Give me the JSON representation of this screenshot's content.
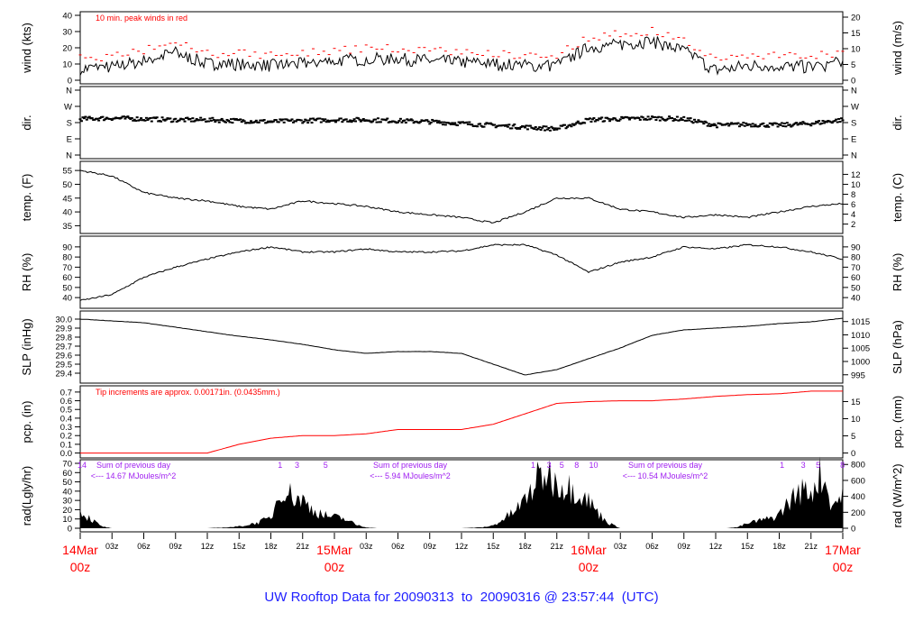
{
  "footer": "UW Rooftop Data for 20090313  to  20090316 @ 23:57:44  (UTC)",
  "chart_data": [
    {
      "type": "line",
      "name": "wind",
      "ylabel": "wind (kts)",
      "ylabel_right": "wind (m/s)",
      "ylim": [
        0,
        40
      ],
      "ticks": [
        "0",
        "10",
        "20",
        "30",
        "40"
      ],
      "ticks_right": [
        "0",
        "5",
        "10",
        "15",
        "20"
      ],
      "annotation": "10 min. peak winds in red",
      "annotation_color": "#ff0000",
      "x_hours": [
        0,
        3,
        6,
        9,
        12,
        15,
        18,
        21,
        24,
        27,
        30,
        33,
        36,
        39,
        42,
        45,
        48,
        51,
        54,
        57,
        60,
        63,
        66,
        69,
        72
      ],
      "values": [
        7,
        8,
        12,
        17,
        10,
        10,
        9,
        10,
        12,
        13,
        13,
        12,
        11,
        10,
        9,
        9,
        20,
        22,
        24,
        18,
        6,
        9,
        9,
        8,
        11
      ]
    },
    {
      "type": "scatter",
      "name": "dir",
      "ylabel": "dir.",
      "ylabel_right": "dir.",
      "ylim": [
        0,
        360
      ],
      "ticks": [
        "N",
        "E",
        "S",
        "W",
        "N"
      ],
      "ticks_right": [
        "N",
        "E",
        "S",
        "W",
        "N"
      ],
      "x_hours": [
        0,
        3,
        6,
        9,
        12,
        15,
        18,
        21,
        24,
        27,
        30,
        33,
        36,
        39,
        42,
        45,
        48,
        51,
        54,
        57,
        60,
        63,
        66,
        69,
        72
      ],
      "values": [
        200,
        205,
        200,
        195,
        195,
        190,
        185,
        190,
        195,
        195,
        190,
        185,
        175,
        165,
        155,
        145,
        195,
        200,
        205,
        200,
        165,
        170,
        165,
        175,
        195
      ]
    },
    {
      "type": "line",
      "name": "temp",
      "ylabel": "temp. (F)",
      "ylabel_right": "temp. (C)",
      "ylim": [
        33.5,
        57
      ],
      "ticks": [
        "35",
        "40",
        "45",
        "50",
        "55"
      ],
      "ticks_right": [
        "2",
        "4",
        "6",
        "8",
        "10",
        "12"
      ],
      "x_hours": [
        0,
        3,
        6,
        9,
        12,
        15,
        18,
        21,
        24,
        27,
        30,
        33,
        36,
        39,
        42,
        45,
        48,
        51,
        54,
        57,
        60,
        63,
        66,
        69,
        72
      ],
      "values": [
        55,
        53,
        47,
        45,
        44,
        42,
        41,
        44,
        43,
        42,
        40,
        39,
        38,
        36,
        40,
        45,
        45,
        41,
        40,
        38,
        39,
        38,
        40,
        42,
        43
      ]
    },
    {
      "type": "line",
      "name": "rh",
      "ylabel": "RH (%)",
      "ylabel_right": "RH (%)",
      "ylim": [
        33,
        97
      ],
      "ticks": [
        "40",
        "50",
        "60",
        "70",
        "80",
        "90"
      ],
      "ticks_right": [
        "40",
        "50",
        "60",
        "70",
        "80",
        "90"
      ],
      "x_hours": [
        0,
        3,
        6,
        9,
        12,
        15,
        18,
        21,
        24,
        27,
        30,
        33,
        36,
        39,
        42,
        45,
        48,
        51,
        54,
        57,
        60,
        63,
        66,
        69,
        72
      ],
      "values": [
        37,
        43,
        60,
        70,
        78,
        85,
        90,
        85,
        85,
        88,
        85,
        85,
        86,
        92,
        92,
        82,
        65,
        75,
        80,
        90,
        88,
        92,
        90,
        85,
        78
      ]
    },
    {
      "type": "line",
      "name": "slp",
      "ylabel": "SLP (inHg)",
      "ylabel_right": "SLP (hPa)",
      "ylim": [
        29.33,
        30.05
      ],
      "ticks": [
        "29.4",
        "29.5",
        "29.6",
        "29.7",
        "29.8",
        "29.9",
        "30.0"
      ],
      "ticks_right": [
        "995",
        "1000",
        "1005",
        "1010",
        "1015"
      ],
      "x_hours": [
        0,
        3,
        6,
        9,
        12,
        15,
        18,
        21,
        24,
        27,
        30,
        33,
        36,
        39,
        42,
        45,
        48,
        51,
        54,
        57,
        60,
        63,
        66,
        69,
        72
      ],
      "values": [
        30.0,
        29.98,
        29.96,
        29.91,
        29.86,
        29.81,
        29.77,
        29.72,
        29.66,
        29.62,
        29.64,
        29.64,
        29.62,
        29.5,
        29.38,
        29.44,
        29.56,
        29.68,
        29.82,
        29.88,
        29.9,
        29.92,
        29.95,
        29.97,
        30.01
      ]
    },
    {
      "type": "line",
      "name": "pcp",
      "ylabel": "pcp. (in)",
      "ylabel_right": "pcp. (mm)",
      "ylim": [
        -0.015,
        0.73
      ],
      "ticks": [
        "0.0",
        "0.1",
        "0.2",
        "0.3",
        "0.4",
        "0.5",
        "0.6",
        "0.7"
      ],
      "ticks_right": [
        "0",
        "5",
        "10",
        "15"
      ],
      "annotation": "Tip increments are approx. 0.00171in. (0.0435mm.)",
      "annotation_color": "#ff0000",
      "x_hours": [
        0,
        3,
        6,
        9,
        12,
        15,
        18,
        21,
        24,
        27,
        30,
        33,
        36,
        39,
        42,
        45,
        48,
        51,
        54,
        57,
        60,
        63,
        66,
        69,
        72
      ],
      "values": [
        0,
        0,
        0,
        0,
        0,
        0.1,
        0.17,
        0.2,
        0.2,
        0.22,
        0.27,
        0.27,
        0.27,
        0.33,
        0.45,
        0.57,
        0.59,
        0.6,
        0.6,
        0.62,
        0.65,
        0.67,
        0.68,
        0.71,
        0.71
      ]
    },
    {
      "type": "area",
      "name": "rad",
      "ylabel": "rad(Lgly/hr)",
      "ylabel_right": "rad (W/m^2)",
      "ylim": [
        0,
        70
      ],
      "ticks": [
        "0",
        "10",
        "20",
        "30",
        "40",
        "50",
        "60",
        "70"
      ],
      "ticks_right": [
        "0",
        "200",
        "400",
        "600",
        "800"
      ],
      "values_hourly": [
        18,
        10,
        2,
        0,
        0,
        0,
        0,
        0,
        0,
        0,
        0,
        0,
        0,
        0.5,
        1,
        2,
        4,
        7,
        11,
        45,
        35,
        30,
        20,
        14,
        12,
        10,
        4,
        1,
        0,
        0,
        0,
        0,
        0,
        0,
        0,
        0,
        0,
        0.5,
        1,
        3,
        10,
        18,
        30,
        50,
        60,
        50,
        45,
        40,
        30,
        15,
        5,
        0,
        0,
        0,
        0,
        0,
        0,
        0,
        0,
        0,
        0,
        0,
        1,
        5,
        8,
        10,
        15,
        30,
        40,
        40,
        60,
        25,
        35
      ],
      "hour_markers": [
        {
          "h": 0,
          "label": "14"
        },
        {
          "h": 18.7,
          "label": "1"
        },
        {
          "h": 20.3,
          "label": "3"
        },
        {
          "h": 23,
          "label": "5"
        },
        {
          "h": 42.6,
          "label": "1"
        },
        {
          "h": 44.1,
          "label": "3"
        },
        {
          "h": 45.3,
          "label": "5"
        },
        {
          "h": 46.7,
          "label": "8"
        },
        {
          "h": 48.3,
          "label": "10"
        },
        {
          "h": 66.1,
          "label": "1"
        },
        {
          "h": 68.1,
          "label": "3"
        },
        {
          "h": 69.5,
          "label": "5"
        },
        {
          "h": 71.8,
          "label": "8"
        }
      ],
      "daily_sums": [
        {
          "h": 24,
          "line1": "Sum of previous day",
          "line2": "<--- 14.67 MJoules/m^2"
        },
        {
          "h": 48,
          "line1": "Sum of previous day",
          "line2": "<--- 5.94 MJoules/m^2"
        },
        {
          "h": 72,
          "line1": "Sum of previous day",
          "line2": "<--- 10.54 MJoules/m^2"
        }
      ],
      "sum_color": "#a020f0"
    }
  ],
  "x_axis": {
    "hour_ticks": [
      "03z",
      "06z",
      "09z",
      "12z",
      "15z",
      "18z",
      "21z"
    ],
    "days": [
      {
        "h": 0,
        "date": "14Mar",
        "time": "00z"
      },
      {
        "h": 24,
        "date": "15Mar",
        "time": "00z"
      },
      {
        "h": 48,
        "date": "16Mar",
        "time": "00z"
      },
      {
        "h": 72,
        "date": "17Mar",
        "time": "00z"
      }
    ],
    "day_color": "#ff0000"
  }
}
